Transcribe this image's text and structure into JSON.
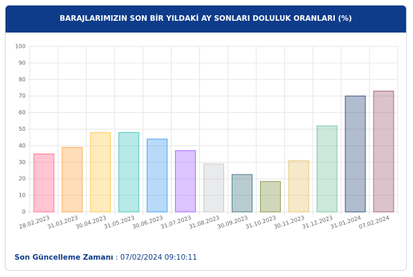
{
  "chart_data": {
    "type": "bar",
    "title": "BARAJLARIMIZIN SON BİR YILDAKİ AY SONLARI DOLULUK ORANLARI (%)",
    "categories": [
      "28.02.2023",
      "31.03.2023",
      "30.04.2023",
      "31.05.2023",
      "30.06.2023",
      "31.07.2023",
      "31.08.2023",
      "30.09.2023",
      "31.10.2023",
      "30.11.2023",
      "31.12.2023",
      "31.01.2024",
      "07.02.2024"
    ],
    "values": [
      35,
      39,
      48,
      48,
      44,
      37,
      29,
      22.6,
      18.4,
      31,
      52,
      70,
      73
    ],
    "colors": [
      "#ff6f91",
      "#ffa94d",
      "#ffcd56",
      "#4bc8c0",
      "#4aa3f0",
      "#a66bff",
      "#c9cbcf",
      "#4d7e8a",
      "#8a9a4e",
      "#e8c77a",
      "#7cc6a6",
      "#3b5785",
      "#a46a7e"
    ],
    "ylim": [
      0,
      100
    ],
    "yticks": [
      0,
      10,
      20,
      30,
      40,
      50,
      60,
      70,
      80,
      90,
      100
    ],
    "grid": true
  },
  "footer": {
    "label": "Son Güncelleme Zamanı",
    "value": ": 07/02/2024 09:10:11"
  }
}
